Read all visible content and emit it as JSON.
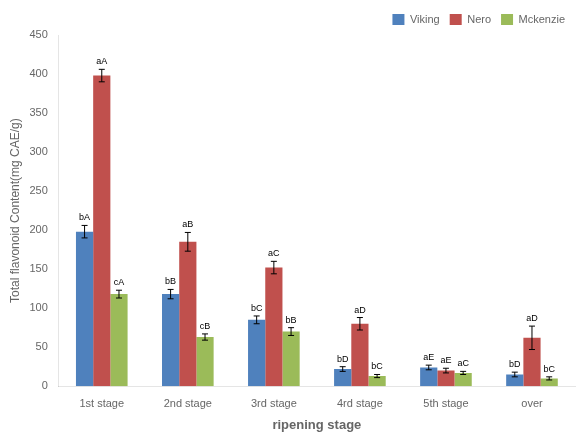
{
  "chart_data": {
    "type": "bar",
    "categories": [
      "1st stage",
      "2nd stage",
      "3rd stage",
      "4rd stage",
      "5th stage",
      "over"
    ],
    "series": [
      {
        "name": "Viking",
        "color": "#4F81BD",
        "values": [
          198,
          118,
          85,
          22,
          24,
          15
        ],
        "errors": [
          8,
          6,
          5,
          3,
          3,
          3
        ],
        "labels": [
          "bA",
          "bB",
          "bC",
          "bD",
          "aE",
          "bD"
        ]
      },
      {
        "name": "Nero",
        "color": "#C0504D",
        "values": [
          398,
          185,
          152,
          80,
          20,
          62
        ],
        "errors": [
          8,
          12,
          8,
          8,
          3,
          15
        ],
        "labels": [
          "aA",
          "aB",
          "aC",
          "aD",
          "aE",
          "aD"
        ]
      },
      {
        "name": "Mckenzie",
        "color": "#9BBB59",
        "values": [
          118,
          63,
          70,
          13,
          17,
          10
        ],
        "errors": [
          5,
          4,
          5,
          2,
          2,
          2
        ],
        "labels": [
          "cA",
          "cB",
          "bB",
          "bC",
          "aC",
          "bC"
        ]
      }
    ],
    "xlabel": "ripening stage",
    "ylabel": "Total flavonoid Content(mg CAE/g)",
    "ylim": [
      0,
      450
    ],
    "yticks": [
      0,
      50,
      100,
      150,
      200,
      250,
      300,
      350,
      400,
      450
    ],
    "grid": false,
    "legend": "upper right"
  }
}
